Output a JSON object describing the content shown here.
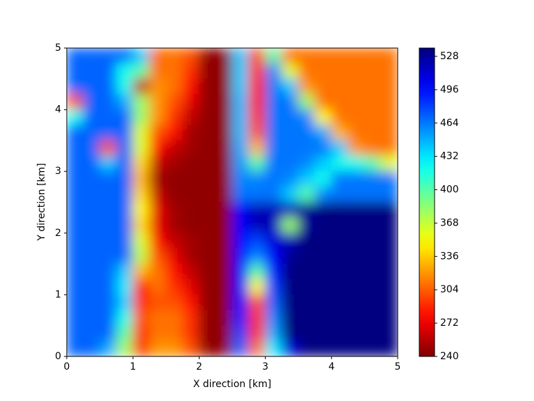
{
  "chart_data": {
    "type": "heatmap",
    "xlabel": "X direction [km]",
    "ylabel": "Y direction [km]",
    "colormap": "jet_r",
    "xlim": [
      0,
      5
    ],
    "ylim": [
      0,
      5
    ],
    "xticks": [
      0,
      1,
      2,
      3,
      4,
      5
    ],
    "yticks": [
      0,
      1,
      2,
      3,
      4,
      5
    ],
    "zlim": [
      240,
      536
    ],
    "zticks": [
      240,
      272,
      304,
      336,
      368,
      400,
      432,
      464,
      496,
      528
    ],
    "x": [
      0.125,
      0.375,
      0.625,
      0.875,
      1.125,
      1.375,
      1.625,
      1.875,
      2.125,
      2.375,
      2.625,
      2.875,
      3.125,
      3.375,
      3.625,
      3.875,
      4.125,
      4.375,
      4.625,
      4.875
    ],
    "y": [
      4.875,
      4.625,
      4.375,
      4.125,
      3.875,
      3.625,
      3.375,
      3.125,
      2.875,
      2.625,
      2.375,
      2.125,
      1.875,
      1.625,
      1.375,
      1.125,
      0.875,
      0.625,
      0.375,
      0.125
    ],
    "z": [
      [
        470,
        470,
        470,
        470,
        440,
        310,
        310,
        300,
        245,
        245,
        440,
        300,
        400,
        310,
        310,
        310,
        310,
        310,
        310,
        310
      ],
      [
        470,
        470,
        470,
        420,
        400,
        310,
        310,
        290,
        245,
        245,
        440,
        290,
        460,
        360,
        310,
        310,
        310,
        310,
        310,
        310
      ],
      [
        470,
        470,
        470,
        420,
        260,
        320,
        310,
        280,
        245,
        245,
        440,
        280,
        465,
        440,
        320,
        310,
        310,
        310,
        310,
        310
      ],
      [
        300,
        470,
        470,
        450,
        380,
        320,
        300,
        270,
        245,
        245,
        445,
        280,
        465,
        465,
        380,
        310,
        310,
        310,
        310,
        310
      ],
      [
        420,
        470,
        470,
        470,
        380,
        320,
        290,
        260,
        245,
        245,
        445,
        290,
        465,
        465,
        460,
        350,
        310,
        310,
        310,
        310
      ],
      [
        470,
        470,
        470,
        470,
        360,
        300,
        280,
        250,
        245,
        245,
        445,
        300,
        465,
        465,
        465,
        450,
        330,
        310,
        310,
        310
      ],
      [
        470,
        470,
        300,
        470,
        360,
        280,
        260,
        250,
        245,
        245,
        450,
        330,
        465,
        465,
        465,
        465,
        440,
        320,
        310,
        310
      ],
      [
        470,
        470,
        440,
        470,
        340,
        260,
        250,
        245,
        245,
        245,
        455,
        400,
        465,
        465,
        460,
        440,
        420,
        420,
        400,
        360
      ],
      [
        470,
        470,
        470,
        470,
        330,
        250,
        245,
        245,
        245,
        245,
        460,
        460,
        465,
        460,
        440,
        420,
        465,
        465,
        465,
        465
      ],
      [
        470,
        470,
        470,
        470,
        340,
        260,
        245,
        245,
        245,
        245,
        465,
        465,
        465,
        440,
        400,
        460,
        465,
        465,
        465,
        465
      ],
      [
        470,
        470,
        470,
        470,
        350,
        270,
        250,
        245,
        245,
        245,
        500,
        520,
        520,
        520,
        530,
        536,
        536,
        536,
        536,
        536
      ],
      [
        470,
        470,
        470,
        470,
        340,
        270,
        250,
        245,
        245,
        245,
        500,
        520,
        520,
        380,
        530,
        536,
        536,
        536,
        536,
        536
      ],
      [
        470,
        470,
        470,
        470,
        360,
        280,
        260,
        250,
        245,
        245,
        500,
        480,
        510,
        520,
        536,
        536,
        536,
        536,
        536,
        536
      ],
      [
        470,
        470,
        470,
        470,
        370,
        300,
        270,
        250,
        245,
        245,
        500,
        460,
        500,
        530,
        536,
        536,
        536,
        536,
        536,
        536
      ],
      [
        470,
        470,
        470,
        440,
        330,
        310,
        280,
        260,
        245,
        245,
        500,
        400,
        490,
        536,
        536,
        536,
        536,
        536,
        536,
        536
      ],
      [
        470,
        470,
        470,
        430,
        280,
        310,
        290,
        270,
        245,
        245,
        500,
        350,
        480,
        536,
        536,
        536,
        536,
        536,
        536,
        536
      ],
      [
        470,
        470,
        470,
        440,
        290,
        300,
        300,
        280,
        245,
        245,
        495,
        300,
        470,
        536,
        536,
        536,
        536,
        536,
        536,
        536
      ],
      [
        470,
        470,
        470,
        420,
        300,
        310,
        310,
        290,
        245,
        245,
        490,
        290,
        460,
        536,
        536,
        536,
        536,
        536,
        536,
        536
      ],
      [
        470,
        470,
        470,
        400,
        290,
        310,
        310,
        290,
        245,
        245,
        480,
        290,
        450,
        536,
        536,
        536,
        536,
        536,
        536,
        536
      ],
      [
        470,
        470,
        450,
        380,
        290,
        320,
        320,
        300,
        245,
        245,
        470,
        310,
        430,
        510,
        536,
        536,
        536,
        536,
        536,
        536
      ]
    ]
  }
}
